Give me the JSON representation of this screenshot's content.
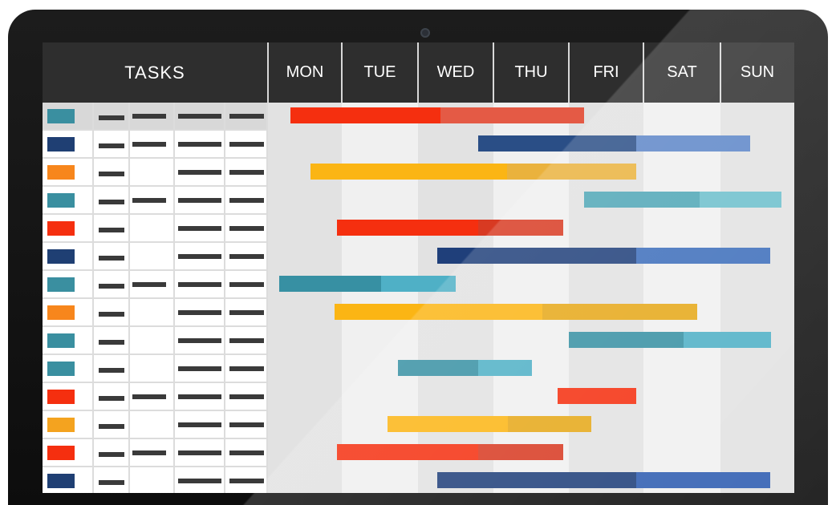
{
  "header": {
    "tasks_label": "TASKS",
    "days": [
      "MON",
      "TUE",
      "WED",
      "THU",
      "FRI",
      "SAT",
      "SUN"
    ]
  },
  "colors": {
    "header_bg": "#2e2e2e",
    "teal": "#3a8fa0",
    "navy": "#1f3f73",
    "orange": "#f7861c",
    "red": "#f52f0f",
    "amber": "#f4a31f",
    "column_shade_light": "#f0f0f0",
    "column_shade_dark": "#e2e2e2"
  },
  "tasks": [
    {
      "swatch": "#3a8fa0",
      "cols": [
        true,
        true,
        true,
        true
      ]
    },
    {
      "swatch": "#1f3f73",
      "cols": [
        true,
        true,
        true,
        true
      ]
    },
    {
      "swatch": "#f7861c",
      "cols": [
        true,
        false,
        true,
        true
      ]
    },
    {
      "swatch": "#3a8fa0",
      "cols": [
        true,
        true,
        true,
        true
      ]
    },
    {
      "swatch": "#f52f0f",
      "cols": [
        true,
        false,
        true,
        true
      ]
    },
    {
      "swatch": "#1f3f73",
      "cols": [
        true,
        false,
        true,
        true
      ]
    },
    {
      "swatch": "#3a8fa0",
      "cols": [
        true,
        true,
        true,
        true
      ]
    },
    {
      "swatch": "#f7861c",
      "cols": [
        true,
        false,
        true,
        true
      ]
    },
    {
      "swatch": "#3a8fa0",
      "cols": [
        true,
        false,
        true,
        true
      ]
    },
    {
      "swatch": "#3a8fa0",
      "cols": [
        true,
        false,
        true,
        true
      ]
    },
    {
      "swatch": "#f52f0f",
      "cols": [
        true,
        true,
        true,
        true
      ]
    },
    {
      "swatch": "#f4a31f",
      "cols": [
        true,
        false,
        true,
        true
      ]
    },
    {
      "swatch": "#f52f0f",
      "cols": [
        true,
        true,
        true,
        true
      ]
    },
    {
      "swatch": "#1f3f73",
      "cols": [
        true,
        false,
        true,
        true
      ]
    }
  ],
  "bars": [
    {
      "start": 0.3,
      "end": 4.2,
      "split": 2.3,
      "color_a": "#f52f0f",
      "color_b": "#e45a45"
    },
    {
      "start": 2.8,
      "end": 6.4,
      "split": 4.9,
      "color_a": "#2a4e86",
      "color_b": "#5d86c8"
    },
    {
      "start": 0.58,
      "end": 4.9,
      "split": 3.18,
      "color_a": "#fbb514",
      "color_b": "#eab23d"
    },
    {
      "start": 4.2,
      "end": 6.83,
      "split": 5.73,
      "color_a": "#4fa6b6",
      "color_b": "#6dbfcc"
    },
    {
      "start": 0.94,
      "end": 3.93,
      "split": 2.8,
      "color_a": "#f52f0f",
      "color_b": "#d83a22"
    },
    {
      "start": 2.26,
      "end": 6.67,
      "split": 4.9,
      "color_a": "#1f3f7a",
      "color_b": "#3d6ebb"
    },
    {
      "start": 0.15,
      "end": 2.5,
      "split": 1.52,
      "color_a": "#3790a3",
      "color_b": "#4fb0c6"
    },
    {
      "start": 0.9,
      "end": 5.7,
      "split": 3.65,
      "color_a": "#fbb514",
      "color_b": "#e6a819"
    },
    {
      "start": 4.0,
      "end": 6.69,
      "split": 5.52,
      "color_a": "#3790a3",
      "color_b": "#4fb0c6"
    },
    {
      "start": 1.74,
      "end": 3.51,
      "split": 2.8,
      "color_a": "#3790a3",
      "color_b": "#4fb0c6"
    },
    {
      "start": 3.85,
      "end": 4.9,
      "split": 4.9,
      "color_a": "#f52f0f",
      "color_b": "#f52f0f"
    },
    {
      "start": 1.6,
      "end": 4.3,
      "split": 3.19,
      "color_a": "#fbb514",
      "color_b": "#e6a819"
    },
    {
      "start": 0.94,
      "end": 3.93,
      "split": 2.8,
      "color_a": "#f52f0f",
      "color_b": "#d83a22"
    },
    {
      "start": 2.26,
      "end": 6.67,
      "split": 4.9,
      "color_a": "#1f3f7a",
      "color_b": "#2f5db1"
    }
  ]
}
